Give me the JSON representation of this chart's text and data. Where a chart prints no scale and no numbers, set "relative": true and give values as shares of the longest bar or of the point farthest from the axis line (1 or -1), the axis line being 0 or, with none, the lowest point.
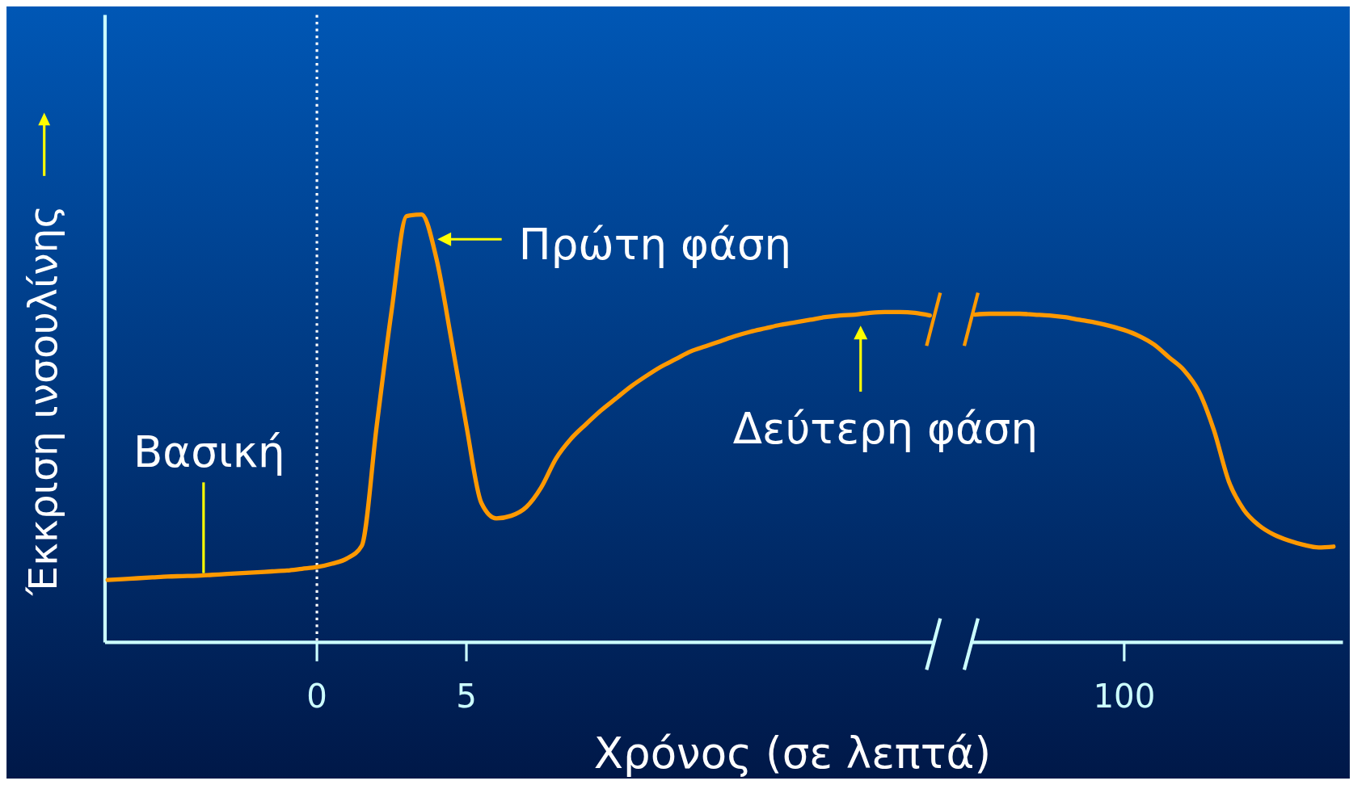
{
  "chart_data": {
    "type": "line",
    "relative": true,
    "xlabel": "Χρόνος (σε λεπτά)",
    "ylabel": "Έκκριση ινσουλίνης",
    "categories": [
      null,
      null,
      null,
      null,
      null,
      null,
      null,
      null,
      null,
      null,
      null,
      null,
      null,
      null,
      "0",
      null,
      null,
      null,
      null,
      null,
      null,
      null,
      null,
      null,
      "5",
      null,
      null,
      null,
      null,
      null,
      null,
      null,
      null,
      null,
      null,
      null,
      null,
      null,
      null,
      null,
      null,
      null,
      null,
      null,
      null,
      null,
      null,
      null,
      null,
      null,
      null,
      null,
      null,
      null,
      null,
      null,
      null,
      null,
      null,
      null,
      null,
      null,
      null,
      null,
      null,
      null,
      null,
      null,
      "100",
      null,
      null,
      null,
      null,
      null,
      null,
      null,
      null,
      null,
      null,
      null,
      null,
      null,
      null
    ],
    "series": [
      {
        "color": "#ff9900",
        "values": [
          0.146,
          0.148,
          0.15,
          0.152,
          0.154,
          0.155,
          0.156,
          0.158,
          0.16,
          0.162,
          0.164,
          0.166,
          0.168,
          0.172,
          0.176,
          0.184,
          0.196,
          0.226,
          0.506,
          0.776,
          0.996,
          1,
          0.896,
          0.706,
          0.506,
          0.326,
          0.29,
          0.296,
          0.316,
          0.362,
          0.43,
          0.476,
          0.51,
          0.542,
          0.57,
          0.598,
          0.622,
          0.644,
          0.662,
          0.68,
          0.692,
          0.704,
          0.716,
          0.726,
          0.734,
          0.742,
          0.748,
          0.754,
          0.76,
          0.764,
          0.766,
          0.77,
          0.772,
          0.772,
          0.77,
          0.764,
          null,
          null,
          0.766,
          0.768,
          0.768,
          0.768,
          0.766,
          0.764,
          0.76,
          0.754,
          0.748,
          0.74,
          0.73,
          0.716,
          0.696,
          0.666,
          0.636,
          0.586,
          0.496,
          0.376,
          0.31,
          0.274,
          0.252,
          0.238,
          0.228,
          0.222,
          0.224
        ]
      }
    ],
    "ref_lines": [
      {
        "axis": "x",
        "value": "0",
        "color": "#ffffff",
        "line_style": "dotted"
      }
    ],
    "annotations": [
      "Βασική",
      "Πρώτη φάση",
      "Δεύτερη φάση"
    ],
    "line_style": "solid",
    "marker": "none"
  }
}
